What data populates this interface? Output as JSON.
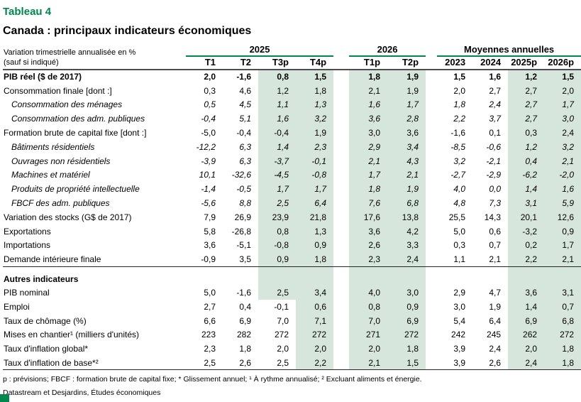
{
  "title": "Tableau 4",
  "subtitle": "Canada : principaux indicateurs économiques",
  "note_line1": "Variation trimestrielle annualisée en %",
  "note_line2": "(sauf si indiqué)",
  "colors": {
    "accent_green": "#00874E",
    "forecast_shade": "#D7E6DC"
  },
  "col_groups": [
    {
      "label": "2025",
      "cols": [
        "T1",
        "T2",
        "T3p",
        "T4p"
      ]
    },
    {
      "label": "2026",
      "cols": [
        "T1p",
        "T2p"
      ]
    },
    {
      "label": "Moyennes annuelles",
      "cols": [
        "2023",
        "2024",
        "2025p",
        "2026p"
      ]
    }
  ],
  "rows": [
    {
      "label": "PIB réel ($ de 2017)",
      "bold": true,
      "values": [
        "2,0",
        "-1,6",
        "0,8",
        "1,5",
        "1,8",
        "1,9",
        "1,5",
        "1,6",
        "1,2",
        "1,5"
      ]
    },
    {
      "label": "Consommation finale [dont :]",
      "values": [
        "0,3",
        "4,6",
        "1,2",
        "1,8",
        "2,1",
        "1,9",
        "2,0",
        "2,7",
        "2,7",
        "2,0"
      ]
    },
    {
      "label": "Consommation des ménages",
      "italic": true,
      "values": [
        "0,5",
        "4,5",
        "1,1",
        "1,3",
        "1,6",
        "1,7",
        "1,8",
        "2,4",
        "2,7",
        "1,7"
      ]
    },
    {
      "label": "Consommation des adm. publiques",
      "italic": true,
      "values": [
        "-0,4",
        "5,1",
        "1,6",
        "3,2",
        "3,6",
        "2,8",
        "2,2",
        "3,7",
        "2,7",
        "3,0"
      ]
    },
    {
      "label": "Formation brute de capital fixe [dont :]",
      "values": [
        "-5,0",
        "-0,4",
        "-0,4",
        "1,9",
        "3,0",
        "3,6",
        "-1,6",
        "0,1",
        "0,3",
        "2,4"
      ]
    },
    {
      "label": "Bâtiments résidentiels",
      "italic": true,
      "values": [
        "-12,2",
        "6,3",
        "1,4",
        "2,3",
        "2,9",
        "3,4",
        "-8,5",
        "-0,6",
        "1,2",
        "3,2"
      ]
    },
    {
      "label": "Ouvrages non résidentiels",
      "italic": true,
      "values": [
        "-3,9",
        "6,3",
        "-3,7",
        "-0,1",
        "2,1",
        "4,3",
        "3,2",
        "-2,1",
        "0,4",
        "2,1"
      ]
    },
    {
      "label": "Machines et matériel",
      "italic": true,
      "values": [
        "10,1",
        "-32,6",
        "-4,5",
        "-0,8",
        "1,7",
        "2,1",
        "-2,7",
        "-2,9",
        "-6,2",
        "-2,0"
      ]
    },
    {
      "label": "Produits de propriété intellectuelle",
      "italic": true,
      "values": [
        "-1,4",
        "-0,5",
        "1,7",
        "1,7",
        "1,8",
        "1,9",
        "4,0",
        "0,0",
        "1,4",
        "1,6"
      ]
    },
    {
      "label": "FBCF des adm. publiques",
      "italic": true,
      "values": [
        "-5,6",
        "8,8",
        "2,5",
        "6,4",
        "7,6",
        "6,8",
        "4,8",
        "7,3",
        "3,1",
        "5,9"
      ]
    },
    {
      "label": "Variation des stocks (G$ de 2017)",
      "values": [
        "7,9",
        "26,9",
        "23,9",
        "21,8",
        "17,6",
        "13,8",
        "25,5",
        "14,3",
        "20,1",
        "12,6"
      ]
    },
    {
      "label": "Exportations",
      "values": [
        "5,8",
        "-26,8",
        "0,8",
        "1,3",
        "3,6",
        "4,2",
        "5,0",
        "0,6",
        "-3,2",
        "0,9"
      ]
    },
    {
      "label": "Importations",
      "values": [
        "3,6",
        "-5,1",
        "-0,8",
        "0,9",
        "2,6",
        "3,3",
        "0,3",
        "0,7",
        "0,2",
        "1,7"
      ]
    },
    {
      "label": "Demande intérieure finale",
      "values": [
        "-0,9",
        "3,5",
        "0,9",
        "1,8",
        "2,3",
        "2,4",
        "1,1",
        "2,1",
        "2,2",
        "2,1"
      ]
    },
    {
      "label": "Autres indicateurs",
      "bold": true,
      "section": true,
      "values": [
        "",
        "",
        "",
        "",
        "",
        "",
        "",
        "",
        "",
        ""
      ]
    },
    {
      "label": "PIB nominal",
      "values": [
        "5,0",
        "-1,6",
        "2,5",
        "3,4",
        "4,0",
        "3,0",
        "2,9",
        "4,7",
        "3,6",
        "3,1"
      ]
    },
    {
      "label": "Emploi",
      "t3_actual": true,
      "values": [
        "2,7",
        "0,4",
        "-0,1",
        "0,6",
        "0,8",
        "0,9",
        "3,0",
        "1,9",
        "1,4",
        "0,7"
      ]
    },
    {
      "label": "Taux de chômage (%)",
      "t3_actual": true,
      "values": [
        "6,6",
        "6,9",
        "7,0",
        "7,1",
        "7,0",
        "6,9",
        "5,4",
        "6,4",
        "6,9",
        "6,8"
      ]
    },
    {
      "label": "Mises en chantier¹ (milliers d'unités)",
      "t3_actual": true,
      "values": [
        "223",
        "282",
        "272",
        "272",
        "271",
        "272",
        "242",
        "245",
        "262",
        "272"
      ]
    },
    {
      "label": "Taux d'inflation global*",
      "t3_actual": true,
      "values": [
        "2,3",
        "1,8",
        "2,0",
        "2,0",
        "2,0",
        "1,8",
        "3,9",
        "2,4",
        "2,0",
        "1,8"
      ]
    },
    {
      "label": "Taux d'inflation de base*²",
      "t3_actual": true,
      "values": [
        "2,5",
        "2,6",
        "2,5",
        "2,2",
        "2,1",
        "1,5",
        "3,9",
        "2,6",
        "2,4",
        "1,8"
      ]
    }
  ],
  "footnote": "p : prévisions; FBCF : formation brute de capital fixe; * Glissement annuel; ¹ À rythme annualisé; ² Excluant aliments et énergie.",
  "source": "Datastream et Desjardins, Études économiques"
}
